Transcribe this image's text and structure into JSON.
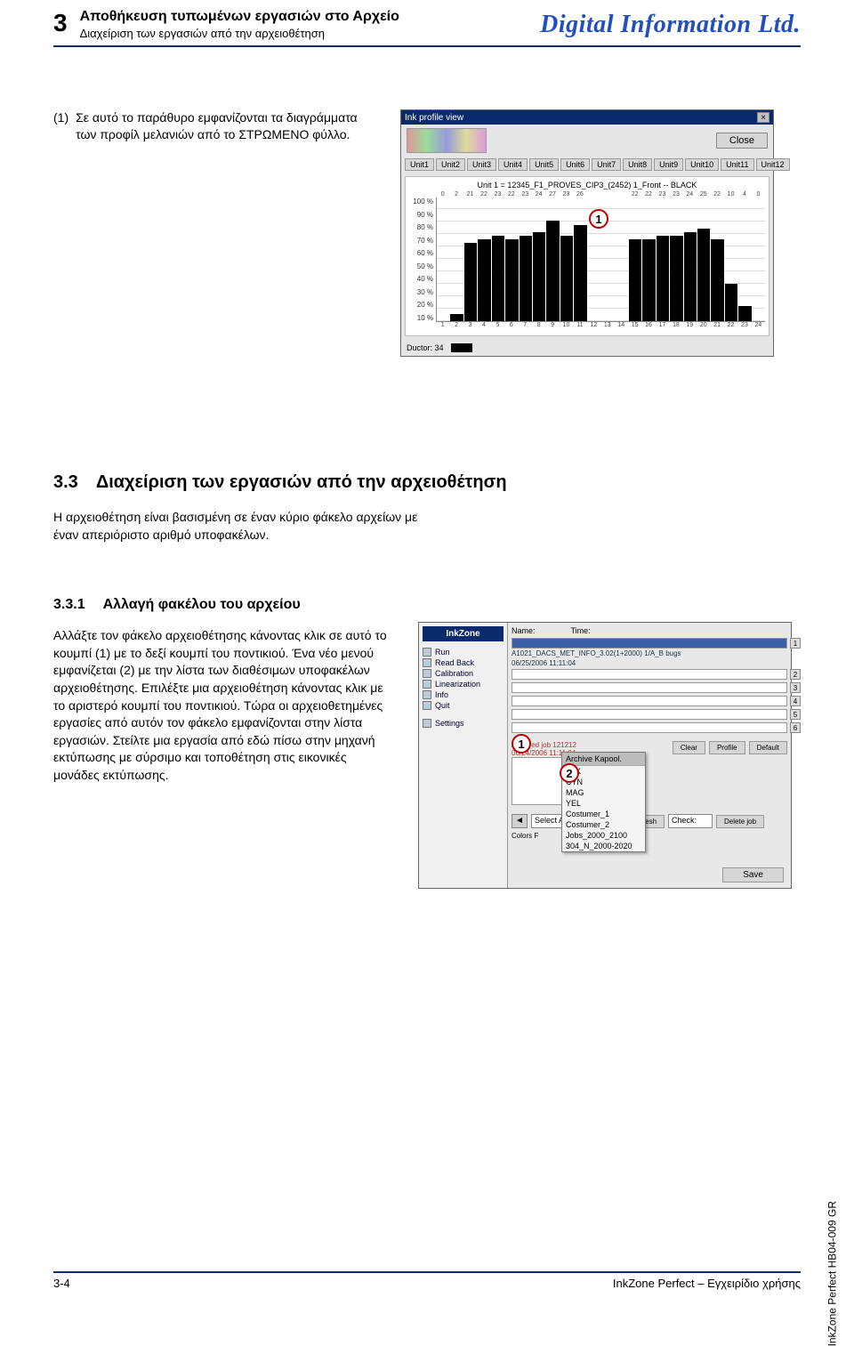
{
  "header": {
    "chapter_number": "3",
    "title": "Αποθήκευση τυπωμένων εργασιών στο Αρχείο",
    "subtitle": "Διαχείριση των εργασιών από την αρχειοθέτηση",
    "brand": "Digital Information Ltd."
  },
  "para1": {
    "bullet": "(1)",
    "text": "Σε αυτό το παράθυρο εμφανίζονται τα διαγράμματα των προφίλ μελανιών από το ΣΤΡΩΜΕΝΟ φύλλο."
  },
  "shot1": {
    "window_title": "Ink profile view",
    "close_btn": "Close",
    "unit_tabs": [
      "Unit1",
      "Unit2",
      "Unit3",
      "Unit4",
      "Unit5",
      "Unit6",
      "Unit7",
      "Unit8",
      "Unit9",
      "Unit10",
      "Unit11",
      "Unit12"
    ],
    "chart_title": "Unit 1 = 12345_F1_PROVES_CIP3_(2452) 1_Front -- BLACK",
    "ytick_labels": [
      "100 %",
      "90 %",
      "80 %",
      "70 %",
      "60 %",
      "50 %",
      "40 %",
      "30 %",
      "20 %",
      "10 %"
    ],
    "xticks_top": [
      "0",
      "2",
      "21",
      "22",
      "23",
      "22",
      "23",
      "24",
      "27",
      "23",
      "26",
      "",
      "",
      "",
      "22",
      "22",
      "23",
      "23",
      "24",
      "25",
      "22",
      "10",
      "4",
      "0"
    ],
    "xticks_bot": [
      "1",
      "2",
      "3",
      "4",
      "5",
      "6",
      "7",
      "8",
      "9",
      "10",
      "11",
      "12",
      "13",
      "14",
      "15",
      "16",
      "17",
      "18",
      "19",
      "20",
      "21",
      "22",
      "23",
      "24"
    ],
    "bar_heights_pct": [
      0,
      2,
      21,
      22,
      23,
      22,
      23,
      24,
      27,
      23,
      26,
      0,
      0,
      0,
      22,
      22,
      23,
      23,
      24,
      25,
      22,
      10,
      4,
      0
    ],
    "bar_color": "#000000",
    "background_color": "#ffffff",
    "grid_color": "#dddddd",
    "ductor_label": "Ductor: 34",
    "callout": "1"
  },
  "sec33": {
    "num": "3.3",
    "title": "Διαχείριση των εργασιών από την αρχειοθέτηση",
    "body": "Η αρχειοθέτηση είναι βασισμένη σε έναν κύριο φάκελο αρχείων με έναν απεριόριστο αριθμό υποφακέλων."
  },
  "sec331": {
    "num": "3.3.1",
    "title": "Αλλαγή φακέλου του αρχείου",
    "body": "Αλλάξτε τον φάκελο αρχειοθέτησης κάνοντας κλικ σε αυτό το κουμπί (1) με το δεξί κουμπί του ποντικιού. Ένα νέο μενού εμφανίζεται (2) με την λίστα των διαθέσιμων υποφακέλων αρχειοθέτησης. Επιλέξτε μια αρχειοθέτηση κάνοντας κλικ με το αριστερό κουμπί του ποντικιού. Τώρα οι αρχειοθετημένες εργασίες από αυτόν τον φάκελο εμφανίζονται στην λίστα εργασιών. Στείλτε μια εργασία από εδώ πίσω στην μηχανή εκτύπωσης με σύρσιμο και τοποθέτηση στις εικονικές μονάδες εκτύπωσης."
  },
  "shot2": {
    "logo": "InkZone",
    "tree": [
      "Run",
      "Read Back",
      "Calibration",
      "Linearization",
      "Info",
      "Quit",
      "",
      "Settings"
    ],
    "name_label": "Name:",
    "time_label": "Time:",
    "job_name": "A1021_DACS_MET_INFO_3.02(1+2000) 1/A_B bugs",
    "job_time": "06/25/2006 11:11:04",
    "row_nums": [
      "1",
      "2",
      "3",
      "4",
      "5",
      "6"
    ],
    "preview_label1": "Archived job 121212",
    "preview_label2": "06/24/2006 11:11:04",
    "buttons": [
      "Clear",
      "Profile",
      "Default"
    ],
    "arrow_label": "Select Archive",
    "refresh_btn": "Refresh",
    "delete_btn": "Delete job",
    "context_head": "Archive Kapool.",
    "context_items": [
      "BLK",
      "CYN",
      "MAG",
      "YEL",
      "Costumer_1",
      "Costumer_2",
      "Jobs_2000_2100",
      "304_N_2000-2020"
    ],
    "context_hl": "Archive Kapool.",
    "check_label": "Check:",
    "colors_label": "Colors F",
    "save_btn": "Save",
    "callout1": "1",
    "callout2": "2"
  },
  "footer": {
    "left": "3-4",
    "right": "InkZone Perfect – Εγχειρίδιο χρήσης"
  },
  "side_code": "InkZone Perfect HB04-009 GR",
  "colors": {
    "rule": "#102c74",
    "brand": "#2050c0",
    "callout_ring": "#c00000"
  }
}
